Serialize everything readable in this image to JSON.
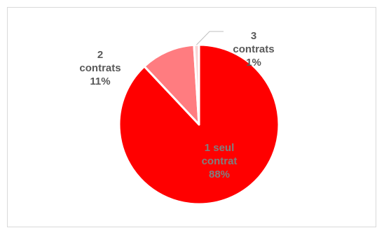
{
  "chart_data": {
    "type": "pie",
    "slices": [
      {
        "name_lines": [
          "1 seul",
          "contrat"
        ],
        "pct_label": "88%",
        "value": 88,
        "color": "#ff0000",
        "label_color": "#7f7f7f"
      },
      {
        "name_lines": [
          "2",
          "contrats"
        ],
        "pct_label": "11%",
        "value": 11,
        "color": "#ff7c80",
        "label_color": "#595959"
      },
      {
        "name_lines": [
          "3",
          "contrats"
        ],
        "pct_label": "1%",
        "value": 1,
        "color": "#fbd5d5",
        "label_color": "#595959"
      }
    ],
    "border_color": "#ffffff",
    "leader_line_color": "#bfbfbf",
    "title": "",
    "legend": "none"
  }
}
